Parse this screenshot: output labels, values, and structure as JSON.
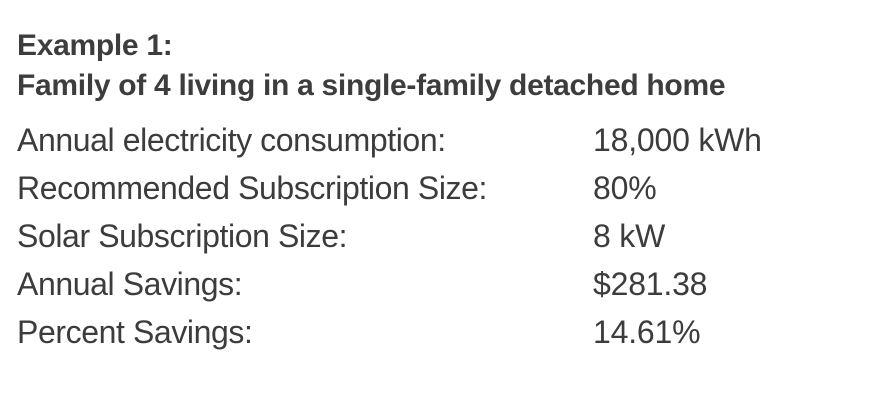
{
  "example": {
    "title": "Example 1:",
    "subtitle": "Family of 4 living in a single-family detached home"
  },
  "rows": [
    {
      "label": "Annual electricity consumption:",
      "value": "18,000 kWh"
    },
    {
      "label": "Recommended Subscription Size:",
      "value": "80%"
    },
    {
      "label": "Solar Subscription Size:",
      "value": "8 kW"
    },
    {
      "label": "Annual Savings:",
      "value": "$281.38"
    },
    {
      "label": "Percent Savings:",
      "value": "14.61%"
    }
  ]
}
